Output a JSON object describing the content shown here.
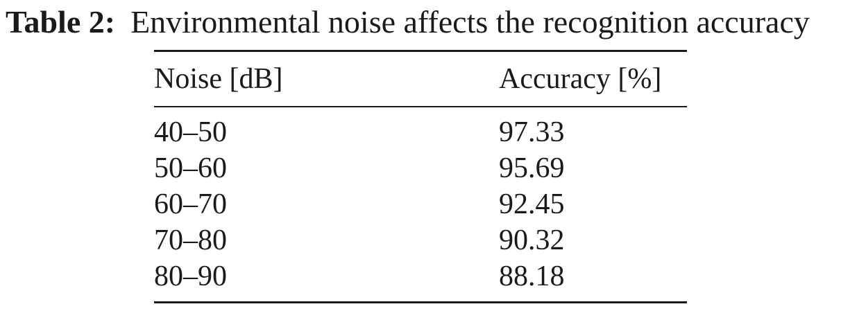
{
  "caption": {
    "label": "Table 2:",
    "text": "Environmental noise affects the recognition accuracy"
  },
  "table": {
    "headers": [
      "Noise [dB]",
      "Accuracy [%]"
    ],
    "rows": [
      [
        "40–50",
        "97.33"
      ],
      [
        "50–60",
        "95.69"
      ],
      [
        "60–70",
        "92.45"
      ],
      [
        "70–80",
        "90.32"
      ],
      [
        "80–90",
        "88.18"
      ]
    ]
  }
}
